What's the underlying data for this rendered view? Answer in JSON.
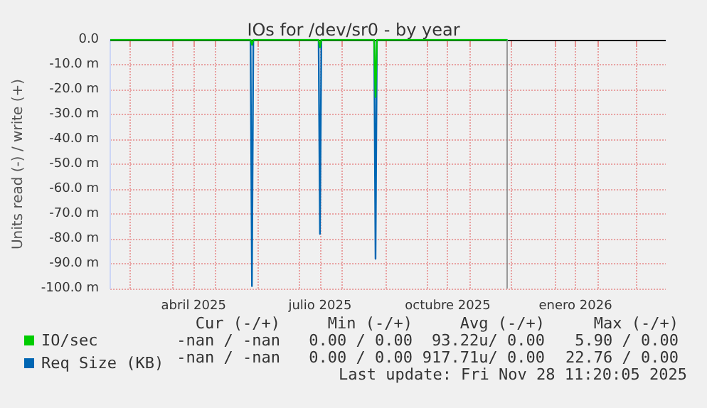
{
  "chart_data": {
    "type": "line",
    "title": "IOs for /dev/sr0 - by year",
    "ylabel": "Units read (-) / write (+)",
    "x": [
      "2025-02-15",
      "2025-05-27",
      "2025-05-28",
      "2025-05-29",
      "2025-07-15",
      "2025-07-16",
      "2025-07-17",
      "2025-08-24",
      "2025-08-25",
      "2025-08-26",
      "2025-11-28"
    ],
    "series": [
      {
        "name": "IO/sec",
        "color": "#00cc00",
        "values": [
          0,
          0,
          -2,
          0,
          0,
          -3,
          0,
          0,
          -23,
          0,
          0
        ]
      },
      {
        "name": "Req Size (KB)",
        "color": "#0066b3",
        "values": [
          0,
          0,
          -99,
          0,
          0,
          -78,
          0,
          0,
          -88,
          0,
          0
        ]
      }
    ],
    "xlim": [
      "2025-02-15",
      "2026-03-22"
    ],
    "xticks": [
      {
        "value": "2025-03-01",
        "label": null
      },
      {
        "value": "2025-04-01",
        "label": null
      },
      {
        "value": "2025-04-16",
        "label": "abril 2025"
      },
      {
        "value": "2025-05-01",
        "label": null
      },
      {
        "value": "2025-06-01",
        "label": null
      },
      {
        "value": "2025-07-01",
        "label": null
      },
      {
        "value": "2025-07-16",
        "label": "julio 2025"
      },
      {
        "value": "2025-08-01",
        "label": null
      },
      {
        "value": "2025-09-01",
        "label": null
      },
      {
        "value": "2025-10-01",
        "label": null
      },
      {
        "value": "2025-10-16",
        "label": "octubre 2025"
      },
      {
        "value": "2025-11-01",
        "label": null
      },
      {
        "value": "2025-12-01",
        "label": null
      },
      {
        "value": "2026-01-01",
        "label": null
      },
      {
        "value": "2026-01-16",
        "label": "enero 2026"
      },
      {
        "value": "2026-02-01",
        "label": null
      },
      {
        "value": "2026-03-01",
        "label": null
      }
    ],
    "ylim": [
      -100,
      0
    ],
    "yticks": [
      {
        "value": -100,
        "label": "-100.0 m"
      },
      {
        "value": -90,
        "label": "-90.0 m"
      },
      {
        "value": -80,
        "label": "-80.0 m"
      },
      {
        "value": -70,
        "label": "-70.0 m"
      },
      {
        "value": -60,
        "label": "-60.0 m"
      },
      {
        "value": -50,
        "label": "-50.0 m"
      },
      {
        "value": -40,
        "label": "-40.0 m"
      },
      {
        "value": -30,
        "label": "-30.0 m"
      },
      {
        "value": -20,
        "label": "-20.0 m"
      },
      {
        "value": -10,
        "label": "-10.0 m"
      },
      {
        "value": 0,
        "label": "0.0"
      }
    ],
    "grid": true,
    "legend": "bottom left",
    "marker": "none",
    "line_style": "solid",
    "ref_lines": [
      {
        "axis": "y",
        "value": 0,
        "label": null,
        "color": "#000000"
      },
      {
        "axis": "x",
        "value": "2025-11-28",
        "label": null,
        "color": "#999999"
      }
    ],
    "annotations": [
      "Cur (-/+)",
      "Min (-/+)",
      "Avg (-/+)",
      "Max (-/+)",
      "-nan / -nan",
      "0.00 / 0.00",
      "93.22u/ 0.00",
      "5.90 / 0.00",
      "-nan / -nan",
      "0.00 / 0.00",
      "917.71u/ 0.00",
      "22.76 / 0.00",
      "Last update: Fri Nov 28 11:20:05 2025"
    ]
  }
}
